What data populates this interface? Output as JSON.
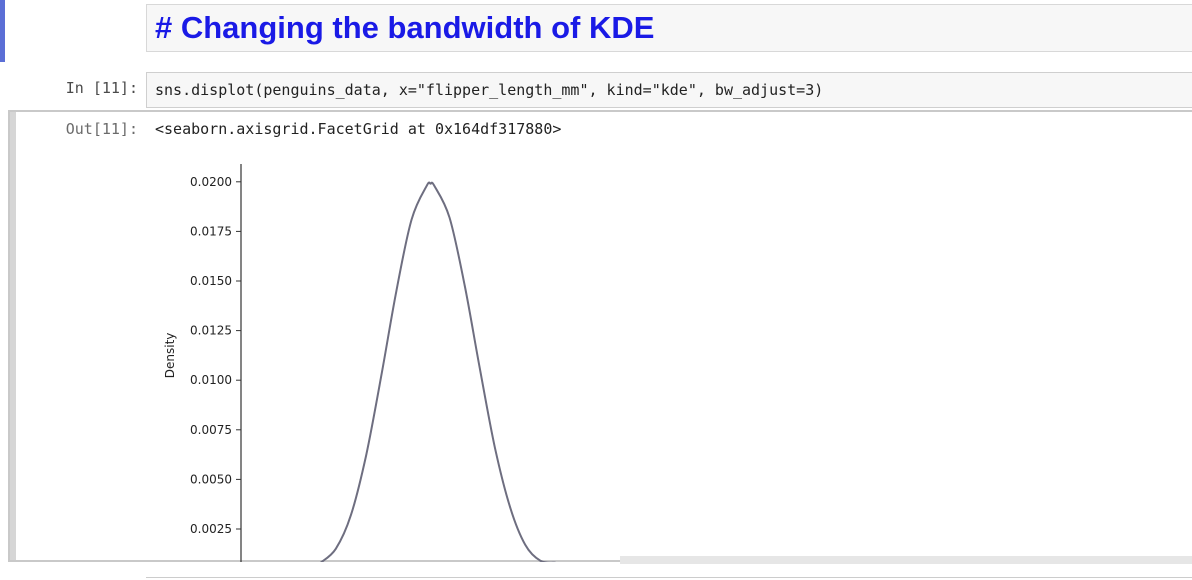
{
  "markdown_cell": {
    "heading": "# Changing the bandwidth of KDE"
  },
  "code_cell": {
    "in_prompt": "In [11]:",
    "code": "sns.displot(penguins_data, x=\"flipper_length_mm\", kind=\"kde\", bw_adjust=3)"
  },
  "output_cell": {
    "out_prompt": "Out[11]:",
    "repr": "<seaborn.axisgrid.FacetGrid at 0x164df317880>"
  },
  "colors": {
    "heading": "#1a1ae6",
    "curve": "#6e6e80"
  },
  "chart_data": {
    "type": "line",
    "ylabel": "Density",
    "yticks": [
      "0.0025",
      "0.0050",
      "0.0075",
      "0.0100",
      "0.0125",
      "0.0150",
      "0.0175",
      "0.0200"
    ],
    "ylim": [
      0.0008,
      0.0206
    ],
    "xlim": [
      0,
      1
    ],
    "series": [
      {
        "x": [
          0.21,
          0.25,
          0.29,
          0.33,
          0.37,
          0.41,
          0.45,
          0.49,
          0.5,
          0.51,
          0.55,
          0.59,
          0.63,
          0.67,
          0.71,
          0.75,
          0.79,
          0.83
        ],
        "y": [
          0.0008,
          0.0015,
          0.0032,
          0.0062,
          0.0102,
          0.0145,
          0.0181,
          0.0198,
          0.0199,
          0.0198,
          0.0182,
          0.0148,
          0.0106,
          0.0066,
          0.0036,
          0.0017,
          0.0009,
          0.0008
        ]
      }
    ]
  }
}
